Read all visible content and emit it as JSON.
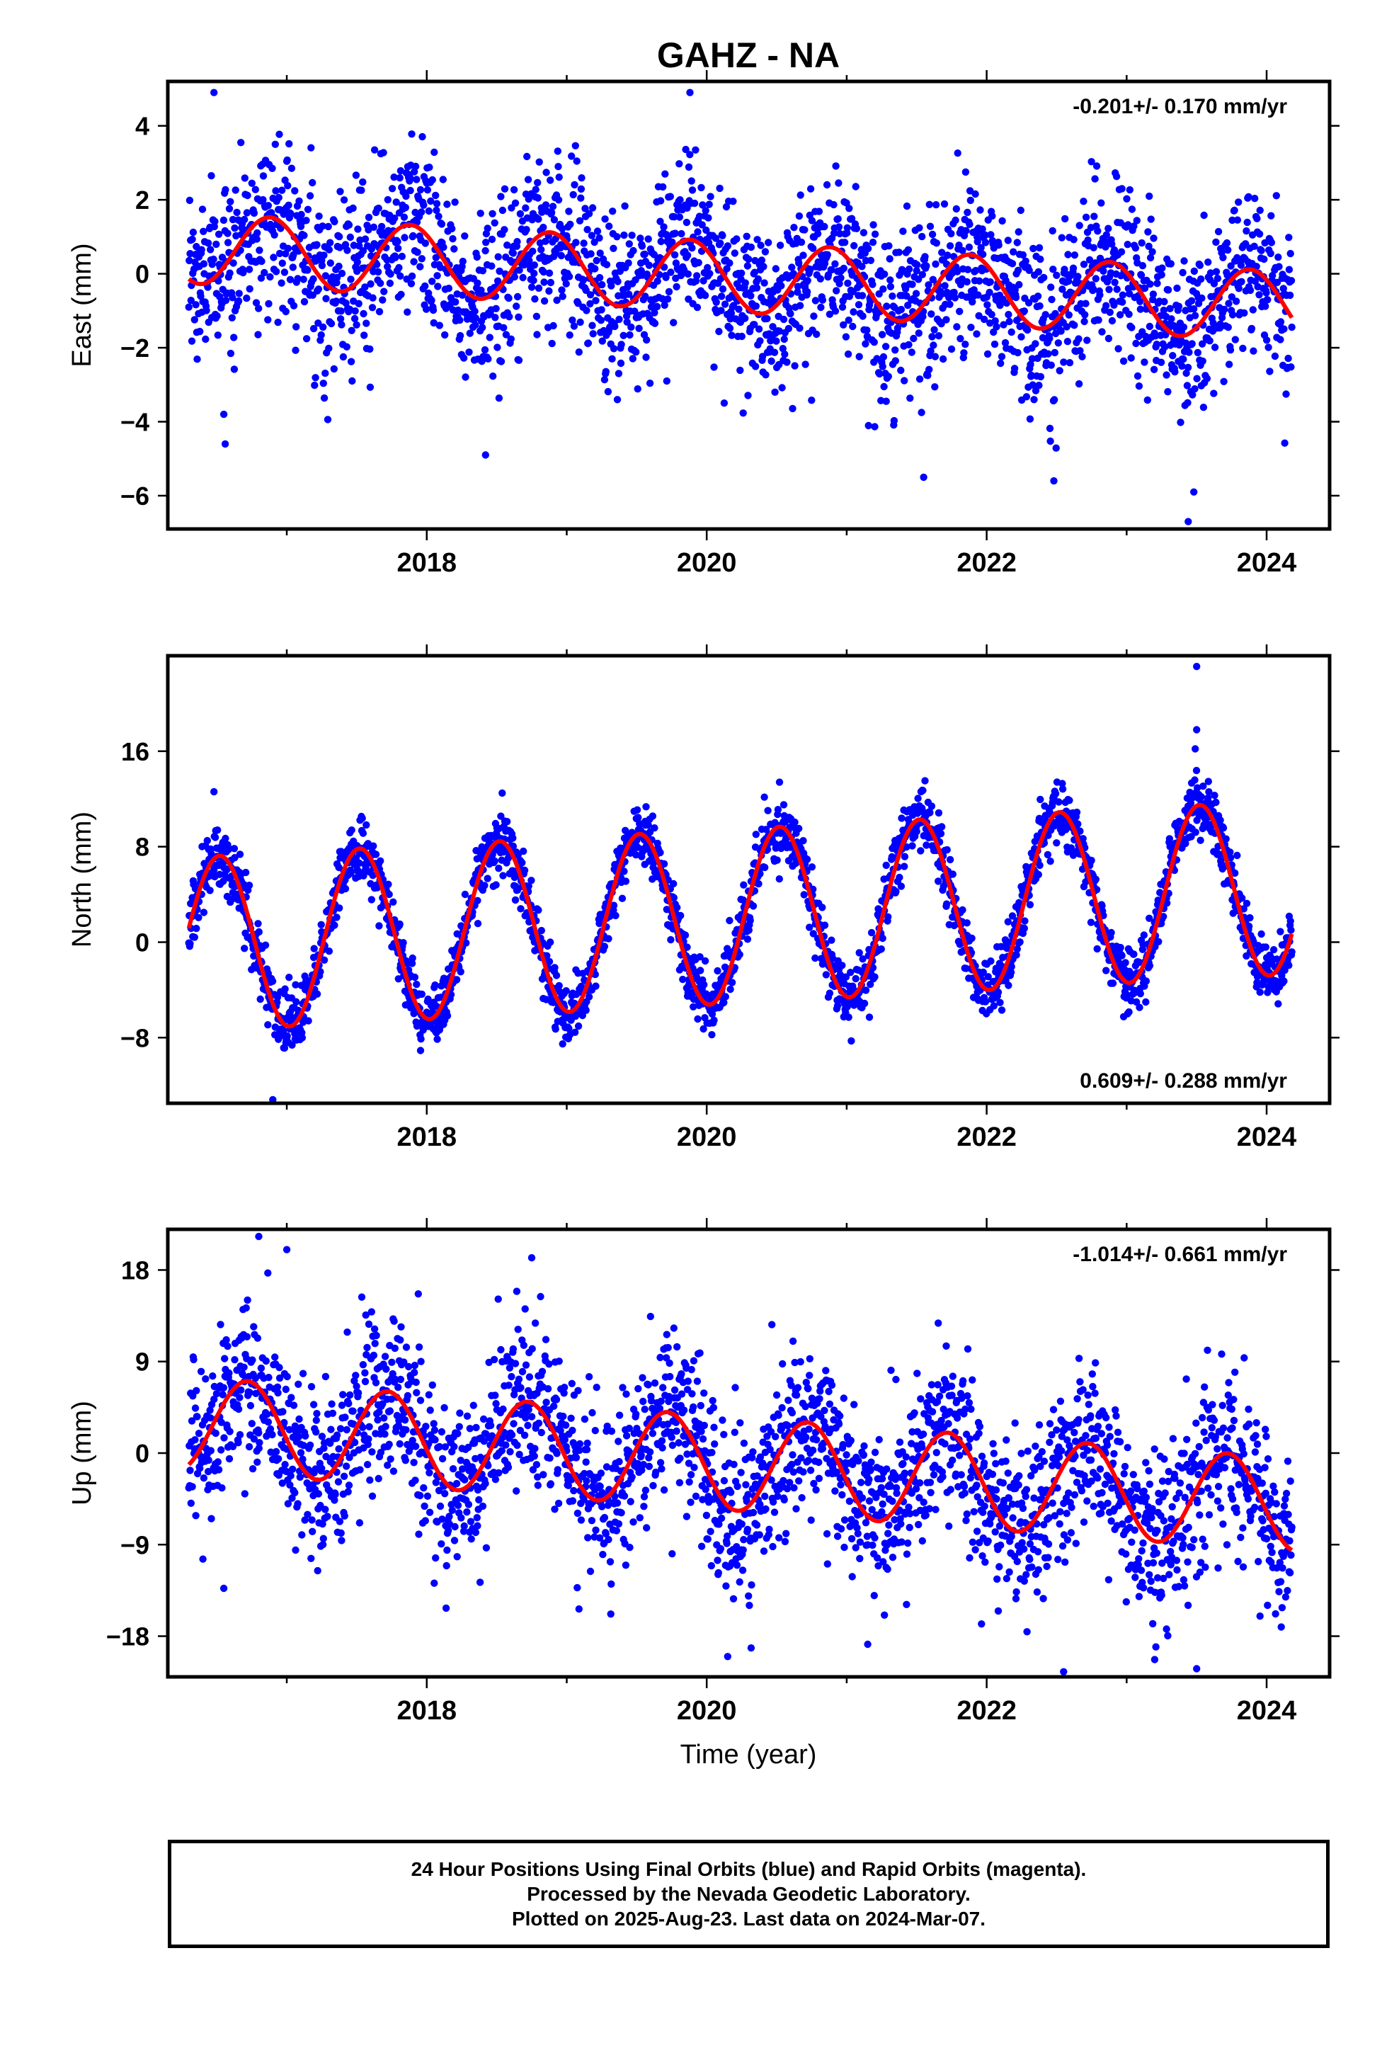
{
  "title": "GAHZ - NA",
  "xlabel": "Time (year)",
  "colors": {
    "points": "#0000ff",
    "fit": "#ff0000",
    "frame": "#000000"
  },
  "caption": {
    "line1": "24 Hour Positions Using Final Orbits (blue) and Rapid Orbits (magenta).",
    "line2": "Processed by the Nevada Geodetic Laboratory.",
    "line3": "Plotted on 2025-Aug-23. Last data on 2024-Mar-07."
  },
  "chart_data": [
    {
      "type": "scatter",
      "ylabel": "East (mm)",
      "rate_text": "-0.201+/- 0.170 mm/yr",
      "rate_position": "top-right",
      "xlim": [
        2016.15,
        2024.45
      ],
      "ylim": [
        -6.9,
        5.2
      ],
      "xticks": [
        2018,
        2020,
        2022,
        2024
      ],
      "yticks": [
        -6,
        -4,
        -2,
        0,
        2,
        4
      ],
      "x_start": 2016.3,
      "x_end": 2024.18,
      "fit": {
        "offset": 0.69,
        "trend": -0.201,
        "amplitude": 0.95,
        "peak_phase": 0.88
      },
      "scatter_sigma": 1.15,
      "outliers": [
        {
          "x": 2016.48,
          "y": 4.9
        },
        {
          "x": 2016.55,
          "y": -3.8
        },
        {
          "x": 2016.56,
          "y": -4.6
        },
        {
          "x": 2018.42,
          "y": -4.9
        },
        {
          "x": 2019.88,
          "y": 4.9
        },
        {
          "x": 2021.55,
          "y": -5.5
        },
        {
          "x": 2022.48,
          "y": -5.6
        },
        {
          "x": 2023.48,
          "y": -5.9
        },
        {
          "x": 2023.44,
          "y": -6.7
        }
      ]
    },
    {
      "type": "scatter",
      "ylabel": "North (mm)",
      "rate_text": "0.609+/- 0.288 mm/yr",
      "rate_position": "bottom-right",
      "xlim": [
        2016.15,
        2024.45
      ],
      "ylim": [
        -13.5,
        24
      ],
      "xticks": [
        2018,
        2020,
        2022,
        2024
      ],
      "yticks": [
        -8,
        0,
        8,
        16
      ],
      "x_start": 2016.3,
      "x_end": 2024.18,
      "fit": {
        "offset": -0.2,
        "trend": 0.609,
        "amplitude": 7.3,
        "peak_phase": 0.52
      },
      "scatter_sigma": 1.3,
      "outliers": [
        {
          "x": 2016.48,
          "y": 12.6
        },
        {
          "x": 2016.9,
          "y": -13.2
        },
        {
          "x": 2020.52,
          "y": 13.4
        },
        {
          "x": 2023.5,
          "y": 23.1
        },
        {
          "x": 2023.5,
          "y": 17.8
        },
        {
          "x": 2023.49,
          "y": 16.2
        }
      ]
    },
    {
      "type": "scatter",
      "ylabel": "Up (mm)",
      "rate_text": "-1.014+/- 0.661 mm/yr",
      "rate_position": "top-right",
      "xlim": [
        2016.15,
        2024.45
      ],
      "ylim": [
        -22,
        22
      ],
      "xticks": [
        2018,
        2020,
        2022,
        2024
      ],
      "yticks": [
        -18,
        -9,
        0,
        9,
        18
      ],
      "x_start": 2016.3,
      "x_end": 2024.18,
      "fit": {
        "offset": 2.9,
        "trend": -1.014,
        "amplitude": 4.6,
        "peak_phase": 0.72
      },
      "scatter_sigma": 4.2,
      "outliers": [
        {
          "x": 2016.55,
          "y": -13.3
        },
        {
          "x": 2016.8,
          "y": 21.3
        },
        {
          "x": 2017.0,
          "y": 20.0
        },
        {
          "x": 2018.75,
          "y": 19.2
        },
        {
          "x": 2020.15,
          "y": -20.0
        },
        {
          "x": 2021.15,
          "y": -18.8
        },
        {
          "x": 2022.55,
          "y": -21.5
        },
        {
          "x": 2023.2,
          "y": -20.3
        },
        {
          "x": 2023.5,
          "y": -21.2
        }
      ]
    }
  ]
}
